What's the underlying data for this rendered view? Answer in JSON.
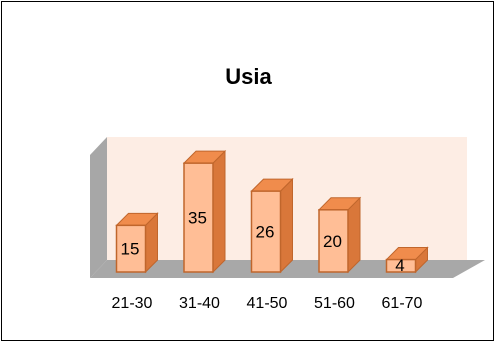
{
  "chart_data": {
    "type": "bar",
    "title": "Usia",
    "categories": [
      "21-30",
      "31-40",
      "41-50",
      "51-60",
      "61-70"
    ],
    "values": [
      15,
      35,
      26,
      20,
      4
    ],
    "data_labels": [
      "15",
      "35",
      "26",
      "20",
      "4"
    ],
    "ylim": [
      0,
      40
    ],
    "grid": false,
    "legend": "none",
    "colors": {
      "bar_front": "#FFBE96",
      "bar_top": "#F08C4C",
      "bar_side": "#D9773A",
      "bar_stroke": "#C0662C",
      "back_wall": "#FDEDE4",
      "side_wall": "#A7A7A7",
      "floor": "#A8A8A8"
    }
  }
}
